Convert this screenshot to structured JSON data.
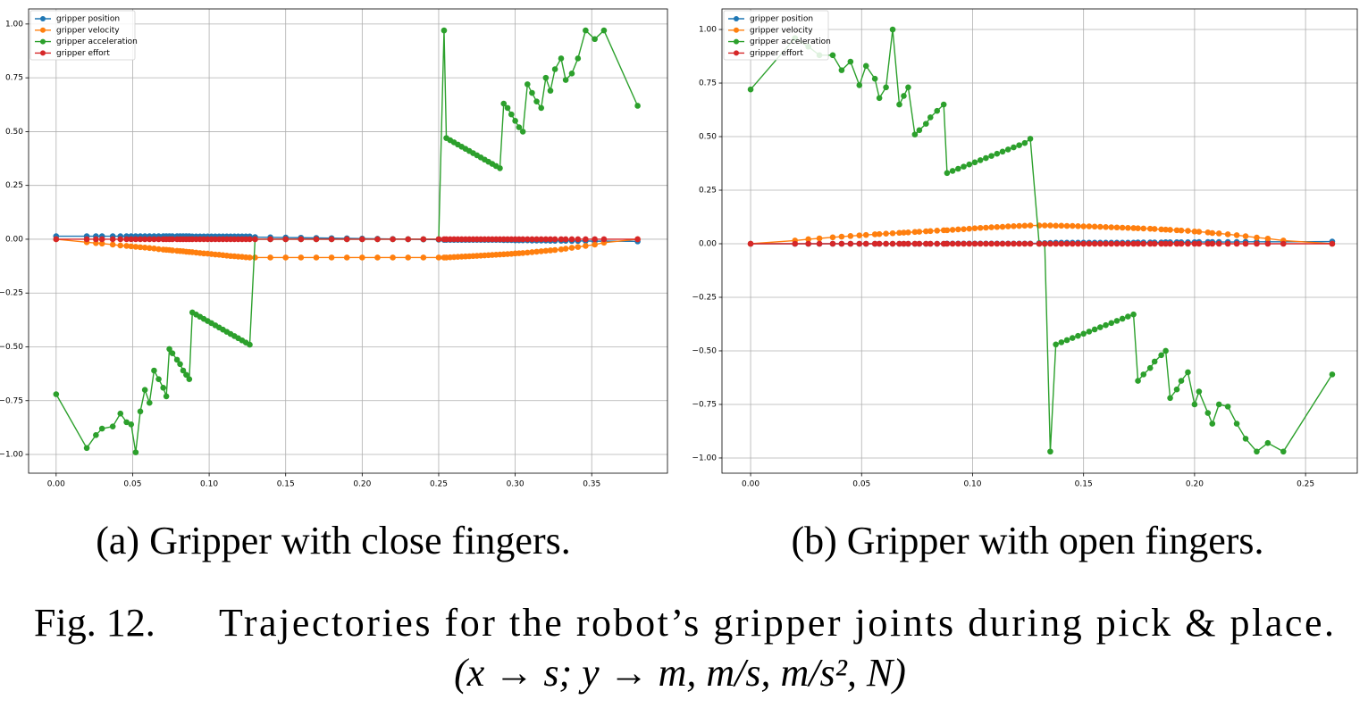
{
  "chart_data": [
    {
      "type": "line",
      "grid": true,
      "legend": "upper left",
      "xlim": [
        -0.018,
        0.3995
      ],
      "ylim": [
        -1.087,
        1.07
      ],
      "xticks": [
        {
          "value": 0,
          "label": "0.00"
        },
        {
          "value": 0.05,
          "label": "0.05"
        },
        {
          "value": 0.1,
          "label": "0.10"
        },
        {
          "value": 0.15,
          "label": "0.15"
        },
        {
          "value": 0.2,
          "label": "0.20"
        },
        {
          "value": 0.25,
          "label": "0.25"
        },
        {
          "value": 0.3,
          "label": "0.30"
        },
        {
          "value": 0.35,
          "label": "0.35"
        }
      ],
      "yticks": [
        {
          "value": -1,
          "label": "−1.00"
        },
        {
          "value": -0.75,
          "label": "−0.75"
        },
        {
          "value": -0.5,
          "label": "−0.50"
        },
        {
          "value": -0.25,
          "label": "−0.25"
        },
        {
          "value": 0,
          "label": "0.00"
        },
        {
          "value": 0.25,
          "label": "0.25"
        },
        {
          "value": 0.5,
          "label": "0.50"
        },
        {
          "value": 0.75,
          "label": "0.75"
        },
        {
          "value": 1,
          "label": "1.00"
        }
      ],
      "x": [
        0,
        0.02,
        0.026,
        0.03,
        0.037,
        0.042,
        0.046,
        0.049,
        0.052,
        0.055,
        0.058,
        0.061,
        0.064,
        0.067,
        0.07,
        0.072,
        0.074,
        0.076,
        0.079,
        0.081,
        0.083,
        0.085,
        0.087,
        0.089,
        0.0915,
        0.094,
        0.0965,
        0.099,
        0.1015,
        0.104,
        0.1065,
        0.109,
        0.1115,
        0.114,
        0.1165,
        0.119,
        0.1215,
        0.124,
        0.1265,
        0.13,
        0.14,
        0.15,
        0.16,
        0.17,
        0.18,
        0.19,
        0.2,
        0.21,
        0.22,
        0.23,
        0.24,
        0.25,
        0.2535,
        0.255,
        0.2575,
        0.26,
        0.2625,
        0.265,
        0.2675,
        0.27,
        0.2725,
        0.275,
        0.2775,
        0.28,
        0.2825,
        0.285,
        0.2875,
        0.29,
        0.2925,
        0.295,
        0.2975,
        0.3,
        0.3025,
        0.305,
        0.308,
        0.311,
        0.314,
        0.317,
        0.32,
        0.323,
        0.326,
        0.33,
        0.333,
        0.337,
        0.341,
        0.346,
        0.352,
        0.358,
        0.38
      ],
      "series": [
        {
          "name": "gripper position",
          "color": "#1f77b4",
          "values": [
            0.014,
            0.014,
            0.014,
            0.014,
            0.014,
            0.014,
            0.014,
            0.014,
            0.014,
            0.014,
            0.014,
            0.014,
            0.014,
            0.014,
            0.014,
            0.014,
            0.014,
            0.014,
            0.014,
            0.014,
            0.014,
            0.014,
            0.014,
            0.013,
            0.013,
            0.013,
            0.013,
            0.013,
            0.013,
            0.013,
            0.013,
            0.013,
            0.013,
            0.013,
            0.013,
            0.013,
            0.013,
            0.013,
            0.013,
            0.01,
            0.009,
            0.008,
            0.007,
            0.006,
            0.005,
            0.004,
            0.003,
            0.002,
            0.001,
            0,
            -0.001,
            -0.002,
            -0.003,
            -0.003,
            -0.003,
            -0.003,
            -0.003,
            -0.003,
            -0.003,
            -0.003,
            -0.003,
            -0.003,
            -0.003,
            -0.003,
            -0.003,
            -0.003,
            -0.003,
            -0.003,
            -0.004,
            -0.004,
            -0.004,
            -0.005,
            -0.005,
            -0.005,
            -0.005,
            -0.006,
            -0.006,
            -0.006,
            -0.006,
            -0.007,
            -0.007,
            -0.007,
            -0.007,
            -0.008,
            -0.008,
            -0.008,
            -0.009,
            -0.009,
            -0.01
          ]
        },
        {
          "name": "gripper velocity",
          "color": "#ff7f0e",
          "values": [
            0,
            -0.014,
            -0.018,
            -0.02,
            -0.025,
            -0.029,
            -0.031,
            -0.033,
            -0.035,
            -0.037,
            -0.039,
            -0.041,
            -0.043,
            -0.046,
            -0.048,
            -0.049,
            -0.05,
            -0.052,
            -0.054,
            -0.055,
            -0.056,
            -0.058,
            -0.059,
            -0.06,
            -0.062,
            -0.064,
            -0.066,
            -0.067,
            -0.069,
            -0.071,
            -0.072,
            -0.074,
            -0.076,
            -0.078,
            -0.079,
            -0.081,
            -0.082,
            -0.084,
            -0.085,
            -0.085,
            -0.085,
            -0.085,
            -0.085,
            -0.085,
            -0.085,
            -0.085,
            -0.085,
            -0.085,
            -0.085,
            -0.085,
            -0.085,
            -0.085,
            -0.085,
            -0.085,
            -0.084,
            -0.083,
            -0.082,
            -0.081,
            -0.08,
            -0.079,
            -0.078,
            -0.077,
            -0.076,
            -0.075,
            -0.074,
            -0.073,
            -0.072,
            -0.071,
            -0.07,
            -0.069,
            -0.068,
            -0.066,
            -0.065,
            -0.064,
            -0.062,
            -0.06,
            -0.058,
            -0.056,
            -0.054,
            -0.052,
            -0.05,
            -0.047,
            -0.044,
            -0.04,
            -0.036,
            -0.031,
            -0.025,
            -0.016,
            0
          ]
        },
        {
          "name": "gripper acceleration",
          "color": "#2ca02c",
          "values": [
            -0.72,
            -0.97,
            -0.91,
            -0.88,
            -0.87,
            -0.81,
            -0.85,
            -0.86,
            -0.99,
            -0.8,
            -0.7,
            -0.76,
            -0.61,
            -0.65,
            -0.69,
            -0.73,
            -0.51,
            -0.53,
            -0.56,
            -0.58,
            -0.61,
            -0.63,
            -0.65,
            -0.34,
            -0.35,
            -0.36,
            -0.37,
            -0.38,
            -0.39,
            -0.4,
            -0.41,
            -0.42,
            -0.43,
            -0.44,
            -0.45,
            -0.46,
            -0.47,
            -0.48,
            -0.49,
            0,
            0,
            0,
            0,
            0,
            0,
            0,
            0,
            0,
            0,
            0,
            0,
            0,
            0.97,
            0.47,
            0.46,
            0.45,
            0.44,
            0.43,
            0.42,
            0.41,
            0.4,
            0.39,
            0.38,
            0.37,
            0.36,
            0.35,
            0.34,
            0.33,
            0.63,
            0.61,
            0.58,
            0.55,
            0.52,
            0.5,
            0.72,
            0.68,
            0.64,
            0.61,
            0.75,
            0.69,
            0.79,
            0.84,
            0.74,
            0.77,
            0.84,
            0.97,
            0.93,
            0.97,
            0.62
          ]
        },
        {
          "name": "gripper effort",
          "color": "#d62728",
          "values": [
            0,
            0,
            0,
            0,
            0,
            0,
            0,
            0,
            0,
            0,
            0,
            0,
            0,
            0,
            0,
            0,
            0,
            0,
            0,
            0,
            0,
            0,
            0,
            0,
            0,
            0,
            0,
            0,
            0,
            0,
            0,
            0,
            0,
            0,
            0,
            0,
            0,
            0,
            0,
            0,
            0,
            0,
            0,
            0,
            0,
            0,
            0,
            0,
            0,
            0,
            0,
            0,
            0,
            0,
            0,
            0,
            0,
            0,
            0,
            0,
            0,
            0,
            0,
            0,
            0,
            0,
            0,
            0,
            0,
            0,
            0,
            0,
            0,
            0,
            0,
            0,
            0,
            0,
            0,
            0,
            0,
            0,
            0,
            0,
            0,
            0,
            0,
            0,
            0
          ]
        }
      ]
    },
    {
      "type": "line",
      "grid": true,
      "legend": "upper left",
      "xlim": [
        -0.0129,
        0.2733
      ],
      "ylim": [
        -1.071,
        1.096
      ],
      "xticks": [
        {
          "value": 0,
          "label": "0.00"
        },
        {
          "value": 0.05,
          "label": "0.05"
        },
        {
          "value": 0.1,
          "label": "0.10"
        },
        {
          "value": 0.15,
          "label": "0.15"
        },
        {
          "value": 0.2,
          "label": "0.20"
        },
        {
          "value": 0.25,
          "label": "0.25"
        }
      ],
      "yticks": [
        {
          "value": -1,
          "label": "−1.00"
        },
        {
          "value": -0.75,
          "label": "−0.75"
        },
        {
          "value": -0.5,
          "label": "−0.50"
        },
        {
          "value": -0.25,
          "label": "−0.25"
        },
        {
          "value": 0,
          "label": "0.00"
        },
        {
          "value": 0.25,
          "label": "0.25"
        },
        {
          "value": 0.5,
          "label": "0.50"
        },
        {
          "value": 0.75,
          "label": "0.75"
        },
        {
          "value": 1,
          "label": "1.00"
        }
      ],
      "x": [
        0,
        0.02,
        0.026,
        0.031,
        0.037,
        0.041,
        0.045,
        0.049,
        0.052,
        0.056,
        0.058,
        0.061,
        0.064,
        0.067,
        0.069,
        0.071,
        0.074,
        0.076,
        0.079,
        0.081,
        0.084,
        0.087,
        0.0885,
        0.091,
        0.0935,
        0.096,
        0.0985,
        0.101,
        0.1035,
        0.106,
        0.1085,
        0.111,
        0.1135,
        0.116,
        0.1185,
        0.121,
        0.1235,
        0.126,
        0.13,
        0.1325,
        0.135,
        0.1375,
        0.14,
        0.1425,
        0.145,
        0.1475,
        0.15,
        0.1525,
        0.155,
        0.1575,
        0.16,
        0.1625,
        0.165,
        0.1675,
        0.17,
        0.1725,
        0.1745,
        0.177,
        0.18,
        0.182,
        0.185,
        0.187,
        0.189,
        0.192,
        0.194,
        0.197,
        0.2,
        0.202,
        0.206,
        0.208,
        0.211,
        0.215,
        0.219,
        0.223,
        0.228,
        0.233,
        0.24,
        0.262
      ],
      "series": [
        {
          "name": "gripper position",
          "color": "#1f77b4",
          "values": [
            0,
            0,
            0,
            0,
            0,
            0,
            0,
            0,
            0,
            0,
            0,
            0,
            0,
            0,
            0,
            0,
            0,
            0,
            0,
            0,
            0,
            0,
            0.001,
            0.001,
            0.001,
            0.001,
            0.001,
            0.001,
            0.001,
            0.001,
            0.001,
            0.001,
            0.001,
            0.001,
            0.001,
            0.001,
            0.001,
            0.001,
            0.003,
            0.003,
            0.004,
            0.005,
            0.005,
            0.005,
            0.005,
            0.005,
            0.005,
            0.005,
            0.005,
            0.005,
            0.005,
            0.005,
            0.005,
            0.005,
            0.005,
            0.005,
            0.006,
            0.006,
            0.006,
            0.006,
            0.006,
            0.007,
            0.007,
            0.007,
            0.007,
            0.007,
            0.007,
            0.008,
            0.008,
            0.008,
            0.008,
            0.008,
            0.008,
            0.009,
            0.009,
            0.009,
            0.009,
            0.01
          ]
        },
        {
          "name": "gripper velocity",
          "color": "#ff7f0e",
          "values": [
            0,
            0.015,
            0.021,
            0.025,
            0.03,
            0.033,
            0.036,
            0.039,
            0.041,
            0.044,
            0.045,
            0.047,
            0.049,
            0.051,
            0.052,
            0.053,
            0.055,
            0.056,
            0.058,
            0.059,
            0.061,
            0.063,
            0.063,
            0.065,
            0.067,
            0.068,
            0.07,
            0.072,
            0.074,
            0.075,
            0.077,
            0.078,
            0.079,
            0.081,
            0.082,
            0.083,
            0.084,
            0.085,
            0.085,
            0.085,
            0.085,
            0.084,
            0.084,
            0.083,
            0.083,
            0.082,
            0.081,
            0.081,
            0.08,
            0.079,
            0.078,
            0.077,
            0.076,
            0.075,
            0.074,
            0.073,
            0.072,
            0.071,
            0.07,
            0.069,
            0.067,
            0.066,
            0.065,
            0.063,
            0.062,
            0.06,
            0.057,
            0.056,
            0.053,
            0.05,
            0.048,
            0.044,
            0.04,
            0.035,
            0.029,
            0.024,
            0.015,
            0
          ]
        },
        {
          "name": "gripper acceleration",
          "color": "#2ca02c",
          "values": [
            0.72,
            0.96,
            0.92,
            0.88,
            0.88,
            0.81,
            0.85,
            0.74,
            0.83,
            0.77,
            0.68,
            0.73,
            1.0,
            0.65,
            0.69,
            0.73,
            0.51,
            0.53,
            0.56,
            0.59,
            0.62,
            0.65,
            0.33,
            0.34,
            0.35,
            0.36,
            0.37,
            0.38,
            0.39,
            0.4,
            0.41,
            0.42,
            0.43,
            0.44,
            0.45,
            0.46,
            0.47,
            0.49,
            0,
            0,
            -0.97,
            -0.47,
            -0.46,
            -0.45,
            -0.44,
            -0.43,
            -0.42,
            -0.41,
            -0.4,
            -0.39,
            -0.38,
            -0.37,
            -0.36,
            -0.35,
            -0.34,
            -0.33,
            -0.64,
            -0.61,
            -0.58,
            -0.55,
            -0.52,
            -0.5,
            -0.72,
            -0.68,
            -0.64,
            -0.6,
            -0.75,
            -0.69,
            -0.79,
            -0.84,
            -0.75,
            -0.76,
            -0.84,
            -0.91,
            -0.97,
            -0.93,
            -0.97,
            -0.61
          ]
        },
        {
          "name": "gripper effort",
          "color": "#d62728",
          "values": [
            0,
            0,
            0,
            0,
            0,
            0,
            0,
            0,
            0,
            0,
            0,
            0,
            0,
            0,
            0,
            0,
            0,
            0,
            0,
            0,
            0,
            0,
            0,
            0,
            0,
            0,
            0,
            0,
            0,
            0,
            0,
            0,
            0,
            0,
            0,
            0,
            0,
            0,
            0,
            0,
            0,
            0,
            0,
            0,
            0,
            0,
            0,
            0,
            0,
            0,
            0,
            0,
            0,
            0,
            0,
            0,
            0,
            0,
            0,
            0,
            0,
            0,
            0,
            0,
            0,
            0,
            0,
            0,
            0,
            0,
            0,
            0,
            0,
            0,
            0,
            0,
            0,
            0
          ]
        }
      ]
    }
  ],
  "subcaptions": [
    "(a) Gripper with close fingers.",
    "(b) Gripper with open fingers."
  ],
  "figure_caption": {
    "label": "Fig. 12.",
    "text": "Trajectories for the robot’s gripper joints during pick & place.",
    "units": "(x → s; y → m, m/s, m/s², N)"
  }
}
